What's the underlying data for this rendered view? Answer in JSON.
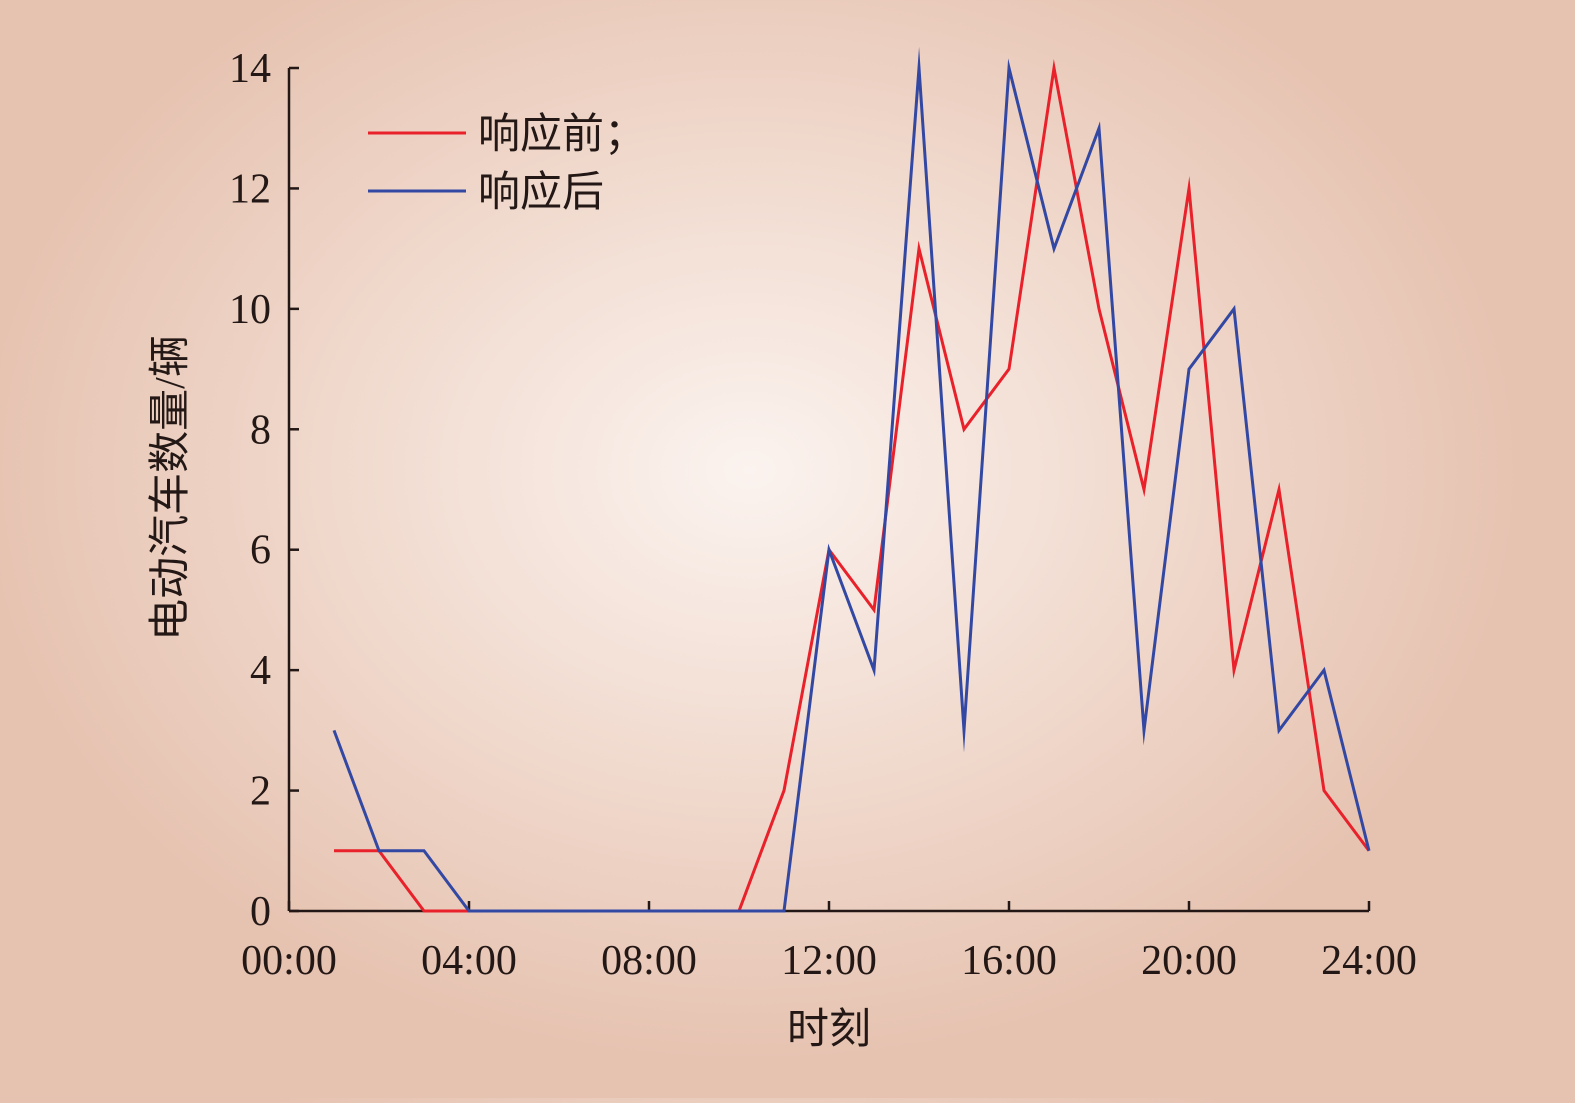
{
  "chart_data": {
    "type": "line",
    "x": [
      "01:00",
      "02:00",
      "03:00",
      "04:00",
      "05:00",
      "06:00",
      "07:00",
      "08:00",
      "09:00",
      "10:00",
      "11:00",
      "12:00",
      "13:00",
      "14:00",
      "15:00",
      "16:00",
      "17:00",
      "18:00",
      "19:00",
      "20:00",
      "21:00",
      "22:00",
      "23:00",
      "24:00"
    ],
    "series": [
      {
        "name": "响应前；",
        "color": "#e8212b",
        "values": [
          1,
          1,
          0,
          0,
          0,
          0,
          0,
          0,
          0,
          0,
          2,
          6,
          5,
          11,
          8,
          9,
          14,
          10,
          7,
          12,
          4,
          7,
          2,
          1
        ]
      },
      {
        "name": "响应后",
        "color": "#3348a3",
        "values": [
          3,
          1,
          1,
          0,
          0,
          0,
          0,
          0,
          0,
          0,
          0,
          6,
          4,
          14,
          3,
          14,
          11,
          13,
          3,
          9,
          10,
          3,
          4,
          1
        ]
      }
    ],
    "xlabel": "时刻",
    "ylabel": "电动汽车数量/辆",
    "xticks": [
      "00:00",
      "04:00",
      "08:00",
      "12:00",
      "16:00",
      "20:00",
      "24:00"
    ],
    "yticks": [
      "0",
      "2",
      "4",
      "6",
      "8",
      "10",
      "12",
      "14"
    ],
    "xlim_hours": [
      0,
      24
    ],
    "ylim": [
      0,
      14
    ],
    "legend_position": "top-left",
    "grid": false
  }
}
